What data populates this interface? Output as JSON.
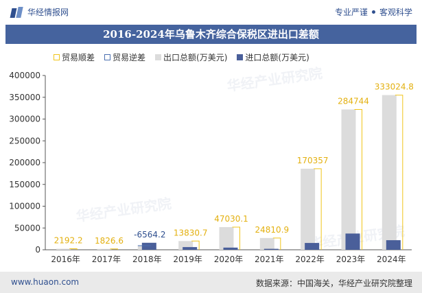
{
  "brand": {
    "name": "华经情报网",
    "slogan_left": "专业严谨",
    "slogan_right": "客观科学"
  },
  "watermark": "华经产业研究院",
  "footer": {
    "website": "www.huaon.com",
    "source": "数据来源：中国海关，华经产业研究院整理"
  },
  "colors": {
    "header_bg": "#45639e",
    "surplus": "#f0c419",
    "deficit": "#4a6fb0",
    "exports": "#dcdcdc",
    "imports": "#4a5f9a",
    "footer_bg": "#eaeaea"
  },
  "chart_data": {
    "type": "bar",
    "title": "2016-2024年乌鲁木齐综合保税区进出口差额",
    "categories": [
      "2016年",
      "2017年",
      "2018年",
      "2019年",
      "2020年",
      "2021年",
      "2022年",
      "2023年",
      "2024年"
    ],
    "series": [
      {
        "name": "贸易顺差",
        "values": [
          2192.2,
          1826.6,
          null,
          13830.7,
          47030.1,
          24810.9,
          170357,
          284744,
          333024.8
        ]
      },
      {
        "name": "贸易逆差",
        "values": [
          null,
          null,
          -6564.2,
          null,
          null,
          null,
          null,
          null,
          null
        ]
      },
      {
        "name": "出口总额(万美元)",
        "values": [
          2300,
          1950,
          9500,
          20000,
          52000,
          27000,
          186000,
          322000,
          355000
        ]
      },
      {
        "name": "进口总额(万美元)",
        "values": [
          108,
          123,
          16064,
          6169,
          4970,
          2189,
          15643,
          37256,
          21975
        ]
      }
    ],
    "data_labels": [
      "2192.2",
      "1826.6",
      "-6564.2",
      "13830.7",
      "47030.1",
      "24810.9",
      "170357",
      "284744",
      "333024.8"
    ],
    "y_ticks": [
      "0",
      "50000",
      "100000",
      "150000",
      "200000",
      "250000",
      "300000",
      "350000",
      "400000"
    ],
    "ylim": [
      0,
      400000
    ],
    "grid": false,
    "legend_position": "top"
  }
}
